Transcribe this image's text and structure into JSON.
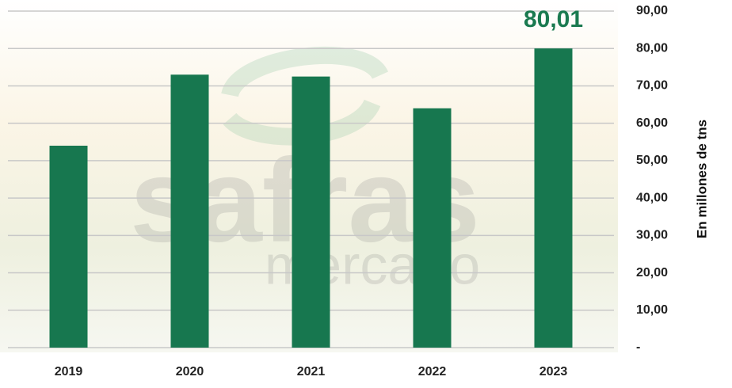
{
  "chart_data": {
    "type": "bar",
    "y_axis_label": "En millones de tns",
    "watermark": [
      "safras",
      "mercado"
    ],
    "categories": [
      "2019",
      "2020",
      "2021",
      "2022",
      "2023"
    ],
    "values": [
      54,
      73,
      72.5,
      64,
      80.01
    ],
    "value_labels": [
      null,
      null,
      null,
      null,
      "80,01"
    ],
    "color": "#17774f",
    "ylim": [
      0,
      90
    ],
    "yticks": [
      {
        "value": 0,
        "label": "-"
      },
      {
        "value": 10,
        "label": "10,00"
      },
      {
        "value": 20,
        "label": "20,00"
      },
      {
        "value": 30,
        "label": "30,00"
      },
      {
        "value": 40,
        "label": "40,00"
      },
      {
        "value": 50,
        "label": "50,00"
      },
      {
        "value": 60,
        "label": "60,00"
      },
      {
        "value": 70,
        "label": "70,00"
      },
      {
        "value": 80,
        "label": "80,00"
      },
      {
        "value": 90,
        "label": "90,00"
      }
    ],
    "grid": true
  }
}
